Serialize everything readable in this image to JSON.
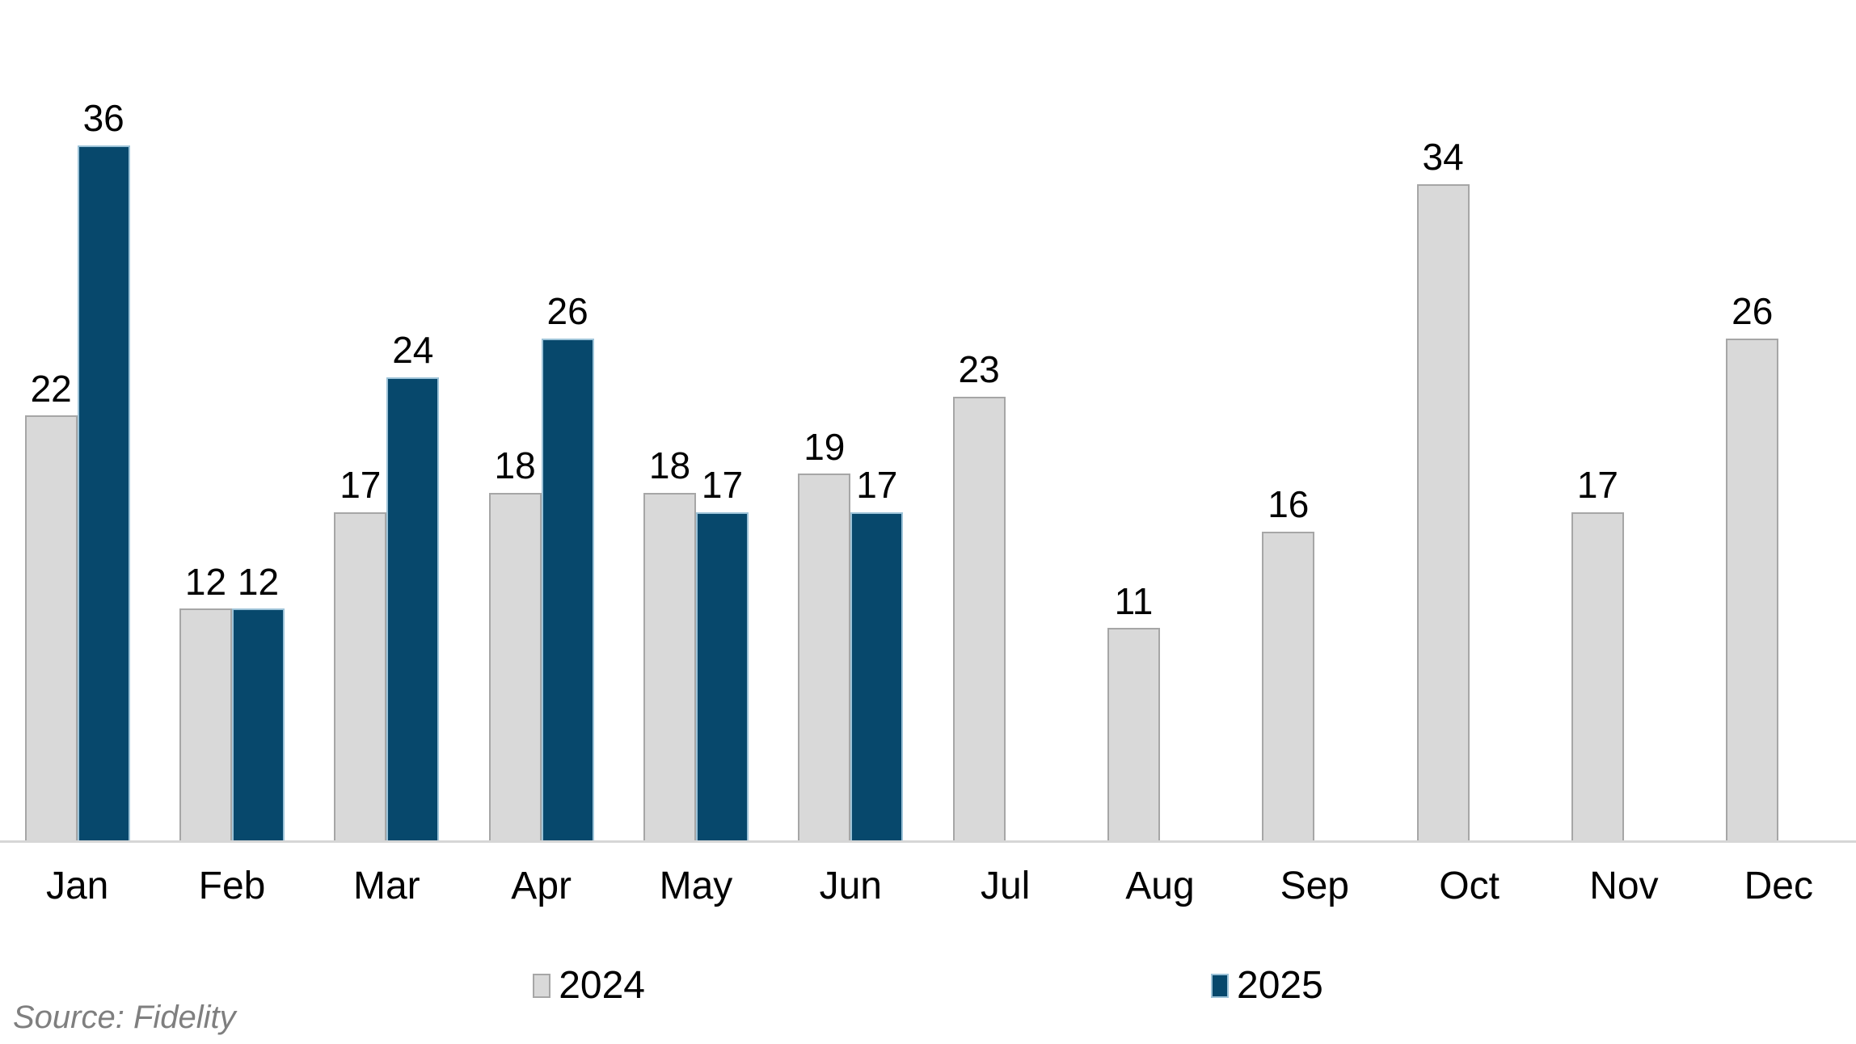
{
  "chart_data": {
    "type": "bar",
    "categories": [
      "Jan",
      "Feb",
      "Mar",
      "Apr",
      "May",
      "Jun",
      "Jul",
      "Aug",
      "Sep",
      "Oct",
      "Nov",
      "Dec"
    ],
    "series": [
      {
        "name": "2024",
        "color": "#d9d9d9",
        "border_color": "#a6a6a6",
        "values": [
          22,
          12,
          17,
          18,
          18,
          19,
          23,
          11,
          16,
          34,
          17,
          26
        ]
      },
      {
        "name": "2025",
        "color": "#07486c",
        "border_color": "#9dc3d8",
        "values": [
          36,
          12,
          24,
          26,
          17,
          17,
          null,
          null,
          null,
          null,
          null,
          null
        ]
      }
    ],
    "title": "",
    "xlabel": "",
    "ylabel": "",
    "ylim": [
      0,
      36
    ],
    "grid": false,
    "value_labels": true,
    "legend_position": "bottom",
    "axis_line_color": "#d6d6d6",
    "background_color": "#ffffff"
  },
  "source_note": "Source: Fidelity"
}
